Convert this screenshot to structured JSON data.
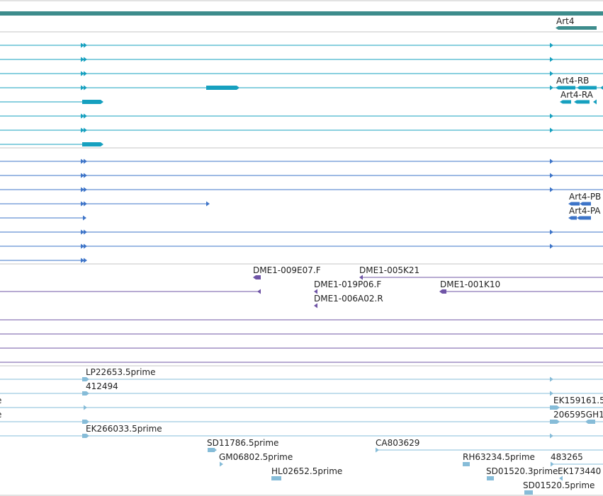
{
  "colors": {
    "gene": "#3d8c8c",
    "transcript_flybase": "#16a0bf",
    "transcript_pred": "#3d74c8",
    "bac_ends": "#6f54a6",
    "est": "#86bcd8",
    "separator": "#c4c4c4"
  },
  "tracks": {
    "gene": {
      "label": "Art4"
    },
    "transcripts_a": [
      "Art4-RB",
      "Art4-RA"
    ],
    "transcripts_b": [
      "Art4-PB",
      "Art4-PA"
    ],
    "bac": [
      "DME1-009E07.F",
      "DME1-005K21",
      "DME1-019P06.F",
      "DME1-001K10",
      "DME1-006A02.R"
    ],
    "est": [
      "LP22653.5prime",
      "412494",
      "EK159161.5",
      "206595GH1",
      "EK266033.5prime",
      "SD11786.5prime",
      "CA803629",
      "GM06802.5prime",
      "RH63234.5prime",
      "483265",
      "HL02652.5prime",
      "SD01520.3prime",
      "EK173440",
      "SD01520.5prime"
    ],
    "cut_left_labels": [
      "e",
      "e"
    ]
  }
}
